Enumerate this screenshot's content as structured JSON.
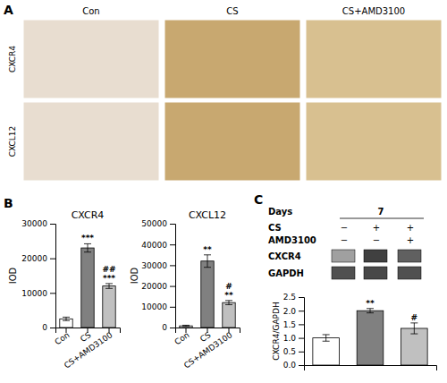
{
  "chart_data": [
    {
      "type": "image_grid",
      "categories": [
        "Con",
        "CS",
        "CS+AMD3100"
      ],
      "rows": [
        "CXCR4",
        "CXCL12"
      ],
      "colors": [
        "#e8ddd0",
        "#c8a870",
        "#d8c090"
      ],
      "annotations": [
        {
          "text": "A"
        }
      ]
    },
    {
      "type": "bar",
      "title": "CXCR4",
      "y_label": "IOD",
      "categories": [
        "Con",
        "CS",
        "CS+AMD3100"
      ],
      "values": [
        2500,
        23000,
        12000
      ],
      "errors": [
        500,
        1200,
        700
      ],
      "colors": [
        "white",
        "#808080",
        "#c0c0c0"
      ],
      "ylim": [
        0,
        30000
      ],
      "yticks": [
        0,
        10000,
        20000,
        30000
      ],
      "annotations": [
        {
          "text": "B"
        },
        {
          "category": "CS",
          "text": "***"
        },
        {
          "category": "CS+AMD3100",
          "text": "***"
        },
        {
          "category": "CS+AMD3100",
          "text": "##"
        }
      ]
    },
    {
      "type": "bar",
      "title": "CXCL12",
      "y_label": "IOD",
      "categories": [
        "Con",
        "CS",
        "CS+AMD3100"
      ],
      "values": [
        800,
        32000,
        12000
      ],
      "errors": [
        300,
        3000,
        1000
      ],
      "colors": [
        "white",
        "#808080",
        "#c0c0c0"
      ],
      "ylim": [
        0,
        50000
      ],
      "yticks": [
        0,
        10000,
        20000,
        30000,
        40000,
        50000
      ],
      "annotations": [
        {
          "category": "CS",
          "text": "**"
        },
        {
          "category": "CS+AMD3100",
          "text": "**"
        },
        {
          "category": "CS+AMD3100",
          "text": "#"
        }
      ]
    },
    {
      "type": "blot",
      "header": {
        "name": "Days",
        "value": "7"
      },
      "rows": [
        {
          "name": "CS",
          "values": [
            "−",
            "+",
            "+"
          ]
        },
        {
          "name": "AMD3100",
          "values": [
            "−",
            "−",
            "+"
          ]
        }
      ],
      "bands": [
        {
          "name": "CXCR4",
          "colors": [
            "#a0a0a0",
            "#404040",
            "#606060"
          ]
        },
        {
          "name": "GAPDH",
          "colors": [
            "#505050",
            "#484848",
            "#505050"
          ]
        }
      ],
      "annotations": [
        {
          "text": "C"
        }
      ]
    },
    {
      "type": "bar",
      "y_label": "CXCR4/GAPDH",
      "categories": [
        "Con",
        "CS",
        "CS+AMD3100"
      ],
      "values": [
        1.0,
        2.0,
        1.35
      ],
      "errors": [
        0.12,
        0.08,
        0.2
      ],
      "colors": [
        "white",
        "#808080",
        "#c0c0c0"
      ],
      "ylim": [
        0,
        2.5
      ],
      "yticks": [
        {
          "value": 0.0,
          "label": "0.0"
        },
        0.5,
        {
          "value": 1.0,
          "label": "1.0"
        },
        1.5,
        {
          "value": 2.0,
          "label": "2.0"
        },
        2.5
      ],
      "tick_labels": "y",
      "annotations": [
        {
          "category": "CS",
          "text": "**"
        },
        {
          "category": "CS+AMD3100",
          "text": "#"
        }
      ]
    }
  ]
}
